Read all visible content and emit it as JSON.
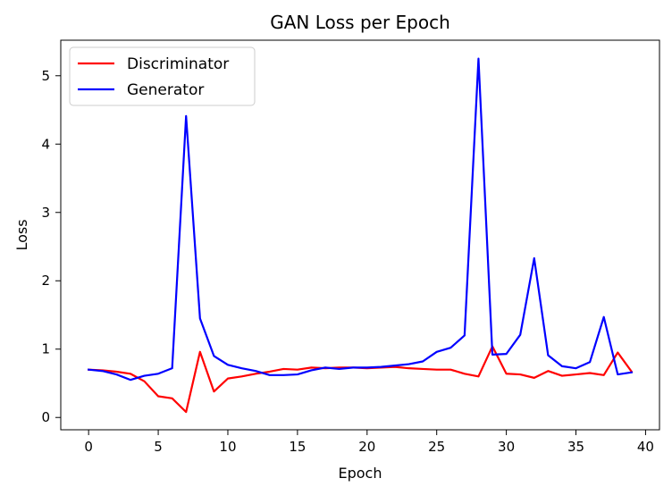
{
  "chart_data": {
    "type": "line",
    "title": "GAN Loss per Epoch",
    "xlabel": "Epoch",
    "ylabel": "Loss",
    "xlim": [
      -2,
      41
    ],
    "ylim": [
      -0.18,
      5.52
    ],
    "xticks": [
      0,
      5,
      10,
      15,
      20,
      25,
      30,
      35,
      40
    ],
    "yticks": [
      0,
      1,
      2,
      3,
      4,
      5
    ],
    "grid": false,
    "legend_position": "upper-left",
    "x": [
      0,
      1,
      2,
      3,
      4,
      5,
      6,
      7,
      8,
      9,
      10,
      11,
      12,
      13,
      14,
      15,
      16,
      17,
      18,
      19,
      20,
      21,
      22,
      23,
      24,
      25,
      26,
      27,
      28,
      29,
      30,
      31,
      32,
      33,
      34,
      35,
      36,
      37,
      38,
      39
    ],
    "series": [
      {
        "name": "Discriminator",
        "color": "#ff0000",
        "values": [
          0.7,
          0.69,
          0.67,
          0.64,
          0.53,
          0.31,
          0.28,
          0.08,
          0.96,
          0.38,
          0.57,
          0.6,
          0.64,
          0.67,
          0.71,
          0.7,
          0.73,
          0.72,
          0.73,
          0.73,
          0.72,
          0.73,
          0.74,
          0.72,
          0.71,
          0.7,
          0.7,
          0.64,
          0.6,
          1.04,
          0.64,
          0.63,
          0.58,
          0.68,
          0.61,
          0.63,
          0.65,
          0.62,
          0.95,
          0.67
        ]
      },
      {
        "name": "Generator",
        "color": "#0000ff",
        "values": [
          0.7,
          0.68,
          0.63,
          0.55,
          0.61,
          0.64,
          0.72,
          4.41,
          1.45,
          0.9,
          0.77,
          0.72,
          0.68,
          0.62,
          0.62,
          0.63,
          0.69,
          0.73,
          0.71,
          0.73,
          0.73,
          0.74,
          0.76,
          0.78,
          0.82,
          0.96,
          1.02,
          1.2,
          5.25,
          0.92,
          0.93,
          1.21,
          2.33,
          0.91,
          0.75,
          0.72,
          0.81,
          1.47,
          0.63,
          0.66
        ]
      }
    ]
  }
}
